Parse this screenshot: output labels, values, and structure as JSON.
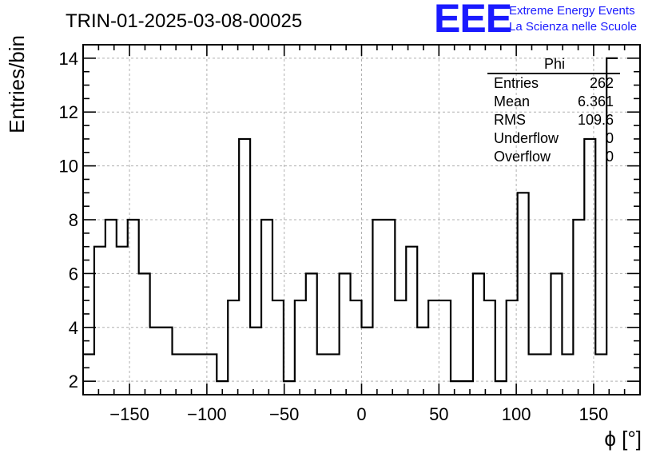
{
  "logo": {
    "mark": "EEE",
    "line1": "Extreme Energy Events",
    "line2": "La Scienza nelle Scuole",
    "color": "#1a1aff"
  },
  "stats": {
    "title": "Phi",
    "rows": [
      {
        "label": "Entries",
        "value": "262"
      },
      {
        "label": "Mean",
        "value": "6.361"
      },
      {
        "label": "RMS",
        "value": "109.6"
      },
      {
        "label": "Underflow",
        "value": "0"
      },
      {
        "label": "Overflow",
        "value": "0"
      }
    ]
  },
  "chart_data": {
    "type": "histogram",
    "title": "TRIN-01-2025-03-08-00025",
    "xlabel": "ϕ [°]",
    "ylabel": "Entries/bin",
    "xlim": [
      -180,
      180
    ],
    "ylim": [
      1.5,
      14.5
    ],
    "grid": true,
    "x_ticks": [
      -150,
      -100,
      -50,
      0,
      50,
      100,
      150
    ],
    "x_tick_labels": [
      "−150",
      "−100",
      "−50",
      "0",
      "50",
      "100",
      "150"
    ],
    "y_ticks": [
      2,
      4,
      6,
      8,
      10,
      12,
      14
    ],
    "y_tick_labels": [
      "2",
      "4",
      "6",
      "8",
      "10",
      "12",
      "14"
    ],
    "bin_edges_start": -180,
    "bin_width": 7.2,
    "values": [
      3,
      7,
      8,
      7,
      8,
      6,
      4,
      4,
      3,
      3,
      3,
      3,
      2,
      5,
      11,
      4,
      8,
      5,
      2,
      5,
      6,
      3,
      3,
      6,
      5,
      4,
      8,
      8,
      5,
      7,
      4,
      5,
      5,
      2,
      2,
      6,
      5,
      2,
      5,
      9,
      3,
      3,
      6,
      3,
      8,
      11,
      3,
      14
    ],
    "line_color": "#000000",
    "grid_color": "#b0b0b0"
  }
}
